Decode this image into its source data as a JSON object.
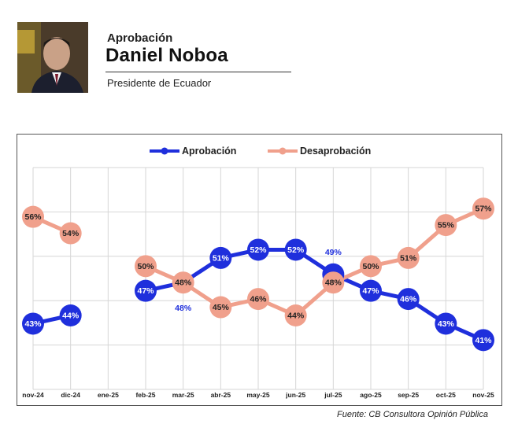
{
  "header": {
    "label": "Aprobación",
    "name": "Daniel Noboa",
    "role": "Presidente de Ecuador"
  },
  "source": "Fuente: CB Consultora Opinión Pública",
  "colors": {
    "approval": "#1f2fdc",
    "disapproval": "#f0a08c"
  },
  "chart_data": {
    "type": "line",
    "categories": [
      "nov-24",
      "dic-24",
      "ene-25",
      "feb-25",
      "mar-25",
      "abr-25",
      "may-25",
      "jun-25",
      "jul-25",
      "ago-25",
      "sep-25",
      "oct-25",
      "nov-25"
    ],
    "ylim": [
      35,
      62
    ],
    "legend_position": "top-center",
    "series": [
      {
        "name": "Aprobación",
        "values": [
          43,
          44,
          null,
          47,
          48,
          51,
          52,
          52,
          49,
          47,
          46,
          43,
          41
        ],
        "labels": [
          "43%",
          "44%",
          "",
          "47%",
          "48%",
          "51%",
          "52%",
          "52%",
          "49%",
          "47%",
          "46%",
          "43%",
          "41%"
        ]
      },
      {
        "name": "Desaprobación",
        "values": [
          56,
          54,
          null,
          50,
          48,
          45,
          46,
          44,
          48,
          50,
          51,
          55,
          57
        ],
        "labels": [
          "56%",
          "54%",
          "",
          "50%",
          "48%",
          "45%",
          "46%",
          "44%",
          "48%",
          "50%",
          "51%",
          "55%",
          "57%"
        ]
      }
    ]
  }
}
